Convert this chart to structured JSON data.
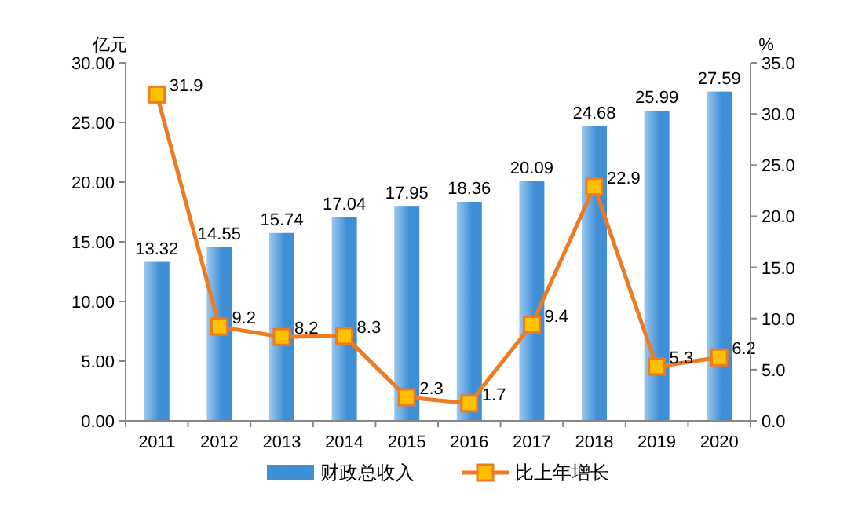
{
  "chart_data": {
    "type": "bar",
    "categories": [
      "2011",
      "2012",
      "2013",
      "2014",
      "2015",
      "2016",
      "2017",
      "2018",
      "2019",
      "2020"
    ],
    "series": [
      {
        "name": "财政总收入",
        "color": "#3f8fd6",
        "values": [
          13.32,
          14.55,
          15.74,
          17.04,
          17.95,
          18.36,
          20.09,
          24.68,
          25.99,
          27.59
        ],
        "value_labels": [
          "13.32",
          "14.55",
          "15.74",
          "17.04",
          "17.95",
          "18.36",
          "20.09",
          "24.68",
          "25.99",
          "27.59"
        ]
      },
      {
        "name": "比上年增长",
        "type": "line",
        "axis": "y2",
        "color": "#ee7a22",
        "values": [
          31.9,
          9.2,
          8.2,
          8.3,
          2.3,
          1.7,
          9.4,
          22.9,
          5.3,
          6.2
        ],
        "value_labels": [
          "31.9",
          "9.2",
          "8.2",
          "8.3",
          "2.3",
          "1.7",
          "9.4",
          "22.9",
          "5.3",
          "6.2"
        ]
      }
    ],
    "ylabel": "亿元",
    "y2label": "%",
    "ylim": [
      0,
      30
    ],
    "yticks": [
      {
        "value": 0,
        "label": "0.00"
      },
      {
        "value": 5,
        "label": "5.00"
      },
      {
        "value": 10,
        "label": "10.00"
      },
      {
        "value": 15,
        "label": "15.00"
      },
      {
        "value": 20,
        "label": "20.00"
      },
      {
        "value": 25,
        "label": "25.00"
      },
      {
        "value": 30,
        "label": "30.00"
      }
    ],
    "y2lim": [
      0,
      35
    ],
    "y2ticks": [
      {
        "value": 0,
        "label": "0.0"
      },
      {
        "value": 5,
        "label": "5.0"
      },
      {
        "value": 10,
        "label": "10.0"
      },
      {
        "value": 15,
        "label": "15.0"
      },
      {
        "value": 20,
        "label": "20.0"
      },
      {
        "value": 25,
        "label": "25.0"
      },
      {
        "value": 30,
        "label": "30.0"
      },
      {
        "value": 35,
        "label": "35.0"
      }
    ],
    "grid": false,
    "legend": "bottom",
    "marker": "square"
  }
}
